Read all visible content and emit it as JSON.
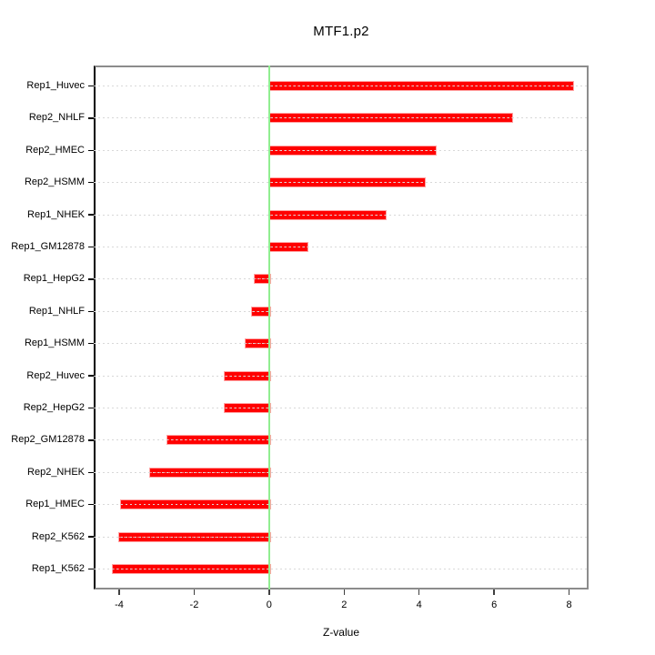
{
  "chart_data": {
    "type": "bar",
    "orientation": "horizontal",
    "title": "MTF1.p2",
    "xlabel": "Z-value",
    "ylabel": "",
    "categories": [
      "Rep1_Huvec",
      "Rep2_NHLF",
      "Rep2_HMEC",
      "Rep2_HSMM",
      "Rep1_NHEK",
      "Rep1_GM12878",
      "Rep1_HepG2",
      "Rep1_NHLF",
      "Rep1_HSMM",
      "Rep2_Huvec",
      "Rep2_HepG2",
      "Rep2_GM12878",
      "Rep2_NHEK",
      "Rep1_HMEC",
      "Rep2_K562",
      "Rep1_K562"
    ],
    "values": [
      8.08,
      6.46,
      4.41,
      4.14,
      3.09,
      0.99,
      -0.41,
      -0.49,
      -0.65,
      -1.2,
      -1.22,
      -2.74,
      -3.2,
      -3.97,
      -4.03,
      -4.19
    ],
    "xticks": [
      -4,
      -2,
      0,
      2,
      4,
      6,
      8
    ],
    "xlim": [
      -4.68,
      8.52
    ],
    "grid": "dotted horizontal line per category, drawn over bars",
    "zero_reference_line": true,
    "legend": "none",
    "colors": {
      "bar_fill": "#ff0000",
      "bar_edge": "#ffa3a3",
      "zero_line": "#90ee90",
      "grid_line": "#d8d8d8",
      "frame": "#8c8c8c",
      "axis": "#000000",
      "text": "#000000"
    }
  }
}
